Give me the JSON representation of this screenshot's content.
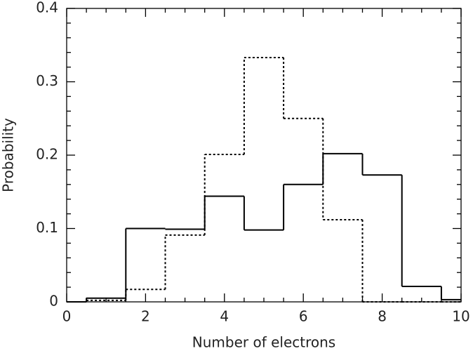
{
  "chart_data": {
    "type": "histogram",
    "xlabel": "Number of electrons",
    "ylabel": "Probability",
    "bins": [
      0,
      0.5,
      1.5,
      2.5,
      3.5,
      4.5,
      5.5,
      6.5,
      7.5,
      8.5,
      9.5,
      10
    ],
    "series": [
      {
        "color": "#000000",
        "linestyle": "solid",
        "values": [
          0,
          0.005,
          0.1,
          0.099,
          0.144,
          0.098,
          0.16,
          0.202,
          0.173,
          0.021,
          0.003
        ]
      },
      {
        "color": "#000000",
        "linestyle": "dotted",
        "values": [
          0,
          0.002,
          0.017,
          0.091,
          0.201,
          0.333,
          0.25,
          0.112,
          0,
          0,
          0
        ]
      }
    ],
    "xlim": [
      0,
      10
    ],
    "xticks": [
      0,
      2,
      4,
      6,
      8,
      10
    ],
    "ylim": [
      0,
      0.4
    ],
    "yticks": [
      0,
      0.1,
      0.2,
      0.3,
      0.4
    ]
  }
}
